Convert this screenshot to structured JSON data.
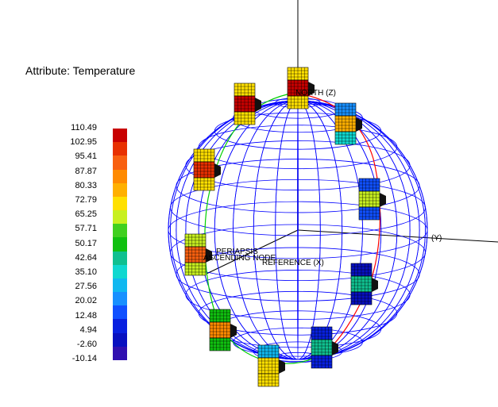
{
  "legend": {
    "title": "Attribute: Temperature",
    "labels": [
      "110.49",
      "102.95",
      "95.41",
      "87.87",
      "80.33",
      "72.79",
      "65.25",
      "57.71",
      "50.17",
      "42.64",
      "35.10",
      "27.56",
      "20.02",
      "12.48",
      "4.94",
      "-2.60",
      "-10.14"
    ],
    "colors": [
      "#c80000",
      "#e83000",
      "#f86010",
      "#ff8a00",
      "#ffb000",
      "#ffe000",
      "#c8f020",
      "#40d020",
      "#10c010",
      "#10c090",
      "#10d8d0",
      "#10b8f0",
      "#1890ff",
      "#1050ff",
      "#0820e0",
      "#0810c0",
      "#3010b0"
    ]
  },
  "axes": {
    "z_label": "NORTH (Z)",
    "y_label": "(Y)",
    "x_label": "REFERENCE (X)"
  },
  "orbit_labels": {
    "periapsis": "PERIAPSIS",
    "ascending_node": "ASCENDING NODE",
    "y_tag": "Y"
  },
  "colors": {
    "sphere": "#0000ff",
    "orbit_green": "#00d000",
    "orbit_red": "#ff0000",
    "axis": "#000000"
  }
}
